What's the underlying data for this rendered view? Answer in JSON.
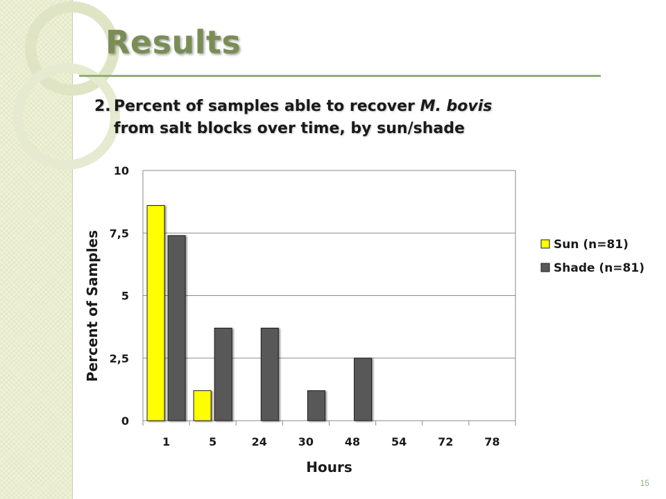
{
  "slide": {
    "title": "Results",
    "subtitle_number": "2.",
    "subtitle_pre": "Percent of samples able to recover ",
    "subtitle_italic": "M. bovis",
    "subtitle_line2": "from salt blocks over time, by sun/shade",
    "page_number": "15"
  },
  "colors": {
    "sun": "#ffff00",
    "shade": "#595959",
    "accent": "#8fae75",
    "title": "#7a8d55"
  },
  "chart_data": {
    "type": "bar",
    "title": "",
    "xlabel": "Hours",
    "ylabel": "Percent of Samples",
    "categories": [
      "1",
      "5",
      "24",
      "30",
      "48",
      "54",
      "72",
      "78"
    ],
    "series": [
      {
        "name": "Sun (n=81)",
        "values": [
          8.6,
          1.2,
          0,
          0,
          0,
          0,
          0,
          0
        ]
      },
      {
        "name": "Shade (n=81)",
        "values": [
          7.4,
          3.7,
          3.7,
          1.2,
          2.5,
          0,
          0,
          0
        ]
      }
    ],
    "ylim": [
      0,
      10
    ],
    "yticks": [
      0,
      2.5,
      5,
      7.5,
      10
    ],
    "ytick_labels": [
      "0",
      "2,5",
      "5",
      "7,5",
      "10"
    ],
    "grid": true,
    "legend": "right"
  }
}
